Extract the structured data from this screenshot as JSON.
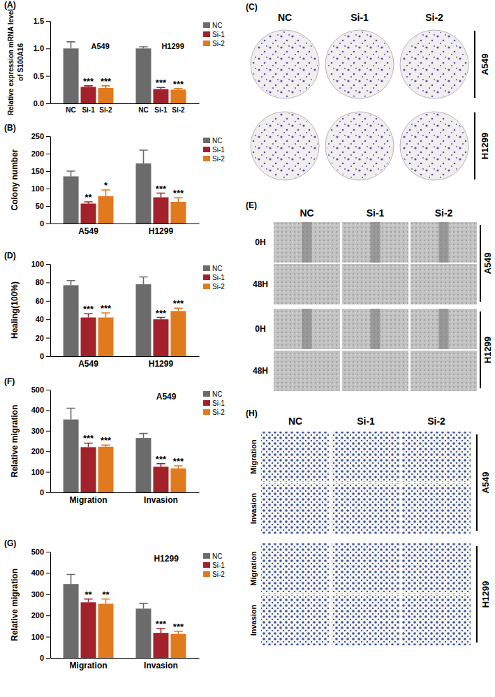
{
  "chart_data": [
    {
      "type": "bar",
      "title": "(A)",
      "y_label": [
        "Relative expression mRNA level",
        "of S100A16"
      ],
      "categories": [
        "A549",
        "H1299"
      ],
      "series": [
        {
          "name": "NC",
          "color": "#6b6b6b",
          "values": [
            1.0,
            1.0
          ],
          "errors": [
            0.12,
            0.03
          ]
        },
        {
          "name": "Si-1",
          "color": "#a3212b",
          "values": [
            0.3,
            0.26
          ],
          "errors": [
            0.02,
            0.03
          ],
          "significance": [
            "***",
            "***"
          ]
        },
        {
          "name": "Si-2",
          "color": "#e07a1f",
          "values": [
            0.28,
            0.25
          ],
          "errors": [
            0.04,
            0.02
          ],
          "significance": [
            "***",
            "***"
          ]
        }
      ],
      "ylim": [
        0,
        1.5
      ],
      "yticks": [
        {
          "value": 0,
          "label": "0.0"
        },
        0.5,
        {
          "value": 1,
          "label": "1.0"
        },
        1.5
      ],
      "legend": "right",
      "grid": false
    },
    {
      "type": "bar",
      "title": "(B)",
      "y_label": "Colony number",
      "categories": [
        "A549",
        "H1299"
      ],
      "series": [
        {
          "name": "NC",
          "color": "#6b6b6b",
          "values": [
            135,
            172
          ],
          "errors": [
            15,
            38
          ]
        },
        {
          "name": "Si-1",
          "color": "#a3212b",
          "values": [
            57,
            75
          ],
          "errors": [
            5,
            12
          ],
          "significance": [
            "**",
            "***"
          ]
        },
        {
          "name": "Si-2",
          "color": "#e07a1f",
          "values": [
            78,
            62
          ],
          "errors": [
            18,
            12
          ],
          "significance": [
            "*",
            "***"
          ]
        }
      ],
      "ylim": [
        0,
        250
      ],
      "yticks": [
        0,
        50,
        100,
        150,
        200,
        250
      ],
      "legend": "right",
      "grid": false
    },
    {
      "type": "bar",
      "title": "(D)",
      "y_label": "Healing(100%)",
      "categories": [
        "A549",
        "H1299"
      ],
      "series": [
        {
          "name": "NC",
          "color": "#6b6b6b",
          "values": [
            77,
            78
          ],
          "errors": [
            5,
            8
          ]
        },
        {
          "name": "Si-1",
          "color": "#a3212b",
          "values": [
            42,
            40
          ],
          "errors": [
            4,
            2
          ],
          "significance": [
            "***",
            "***"
          ]
        },
        {
          "name": "Si-2",
          "color": "#e07a1f",
          "values": [
            42,
            49
          ],
          "errors": [
            5,
            3
          ],
          "significance": [
            "***",
            "***"
          ]
        }
      ],
      "ylim": [
        0,
        100
      ],
      "yticks": [
        0,
        20,
        40,
        60,
        80,
        100
      ],
      "legend": "right",
      "grid": false
    },
    {
      "type": "bar",
      "title": "(F)",
      "y_label": "Relative migration",
      "annotations": [
        "A549"
      ],
      "categories": [
        "Migration",
        "Invasion"
      ],
      "series": [
        {
          "name": "NC",
          "color": "#6b6b6b",
          "values": [
            355,
            265
          ],
          "errors": [
            55,
            22
          ]
        },
        {
          "name": "Si-1",
          "color": "#a3212b",
          "values": [
            220,
            125
          ],
          "errors": [
            20,
            15
          ],
          "significance": [
            "***",
            "***"
          ]
        },
        {
          "name": "Si-2",
          "color": "#e07a1f",
          "values": [
            222,
            117
          ],
          "errors": [
            8,
            12
          ],
          "significance": [
            "***",
            "***"
          ]
        }
      ],
      "ylim": [
        0,
        500
      ],
      "yticks": [
        0,
        100,
        200,
        300,
        400,
        500
      ],
      "legend": "right",
      "grid": false
    },
    {
      "type": "bar",
      "title": "(G)",
      "y_label": "Relative migration",
      "annotations": [
        "H1299"
      ],
      "categories": [
        "Migration",
        "Invasion"
      ],
      "series": [
        {
          "name": "NC",
          "color": "#6b6b6b",
          "values": [
            348,
            232
          ],
          "errors": [
            45,
            25
          ]
        },
        {
          "name": "Si-1",
          "color": "#a3212b",
          "values": [
            262,
            118
          ],
          "errors": [
            15,
            20
          ],
          "significance": [
            "**",
            "***"
          ]
        },
        {
          "name": "Si-2",
          "color": "#e07a1f",
          "values": [
            255,
            113
          ],
          "errors": [
            22,
            12
          ],
          "significance": [
            "**",
            "***"
          ]
        }
      ],
      "ylim": [
        0,
        500
      ],
      "yticks": [
        0,
        100,
        200,
        300,
        400,
        500
      ],
      "legend": "right",
      "grid": false
    }
  ],
  "image_panels": [
    {
      "title": "(C)",
      "columns": [
        "NC",
        "Si-1",
        "Si-2"
      ],
      "groups": [
        {
          "name": "A549"
        },
        {
          "name": "H1299"
        }
      ]
    },
    {
      "title": "(E)",
      "columns": [
        "NC",
        "Si-1",
        "Si-2"
      ],
      "groups": [
        {
          "name": "A549",
          "rows": [
            "0H",
            "48H"
          ]
        },
        {
          "name": "H1299",
          "rows": [
            "0H",
            "48H"
          ]
        }
      ]
    },
    {
      "title": "(H)",
      "columns": [
        "NC",
        "Si-1",
        "Si-2"
      ],
      "groups": [
        {
          "name": "A549",
          "rows": [
            "Migration",
            "Invasion"
          ]
        },
        {
          "name": "H1299",
          "rows": [
            "Migration",
            "Invasion"
          ]
        }
      ]
    }
  ]
}
